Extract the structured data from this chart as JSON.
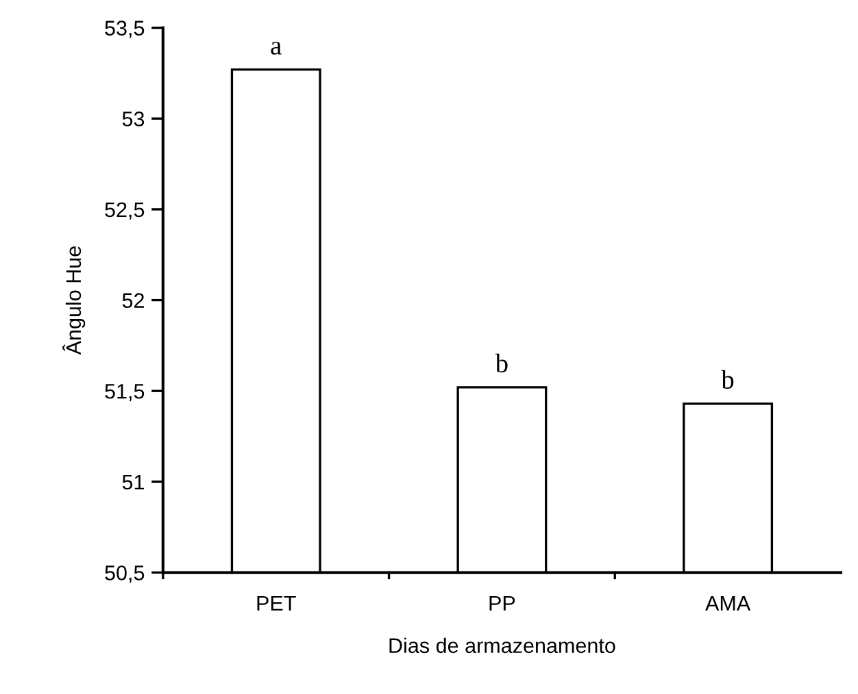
{
  "chart_data": {
    "type": "bar",
    "xlabel": "Dias de armazenamento",
    "ylabel": "Ângulo Hue",
    "categories": [
      "PET",
      "PP",
      "AMA"
    ],
    "values": [
      53.27,
      51.52,
      51.43
    ],
    "color": "#ffffff",
    "ylim": [
      50.5,
      53.5
    ],
    "yticks": [
      {
        "value": 50.5,
        "label": "50,5"
      },
      {
        "value": 51,
        "label": "51"
      },
      {
        "value": 51.5,
        "label": "51,5"
      },
      {
        "value": 52,
        "label": "52"
      },
      {
        "value": 52.5,
        "label": "52,5"
      },
      {
        "value": 53,
        "label": "53"
      },
      {
        "value": 53.5,
        "label": "53,5"
      }
    ],
    "annotations": [
      {
        "text": "a",
        "x": "PET",
        "y": 53.27
      },
      {
        "text": "b",
        "x": "PP",
        "y": 51.52
      },
      {
        "text": "b",
        "x": "AMA",
        "y": 51.43
      }
    ],
    "grid": false
  }
}
